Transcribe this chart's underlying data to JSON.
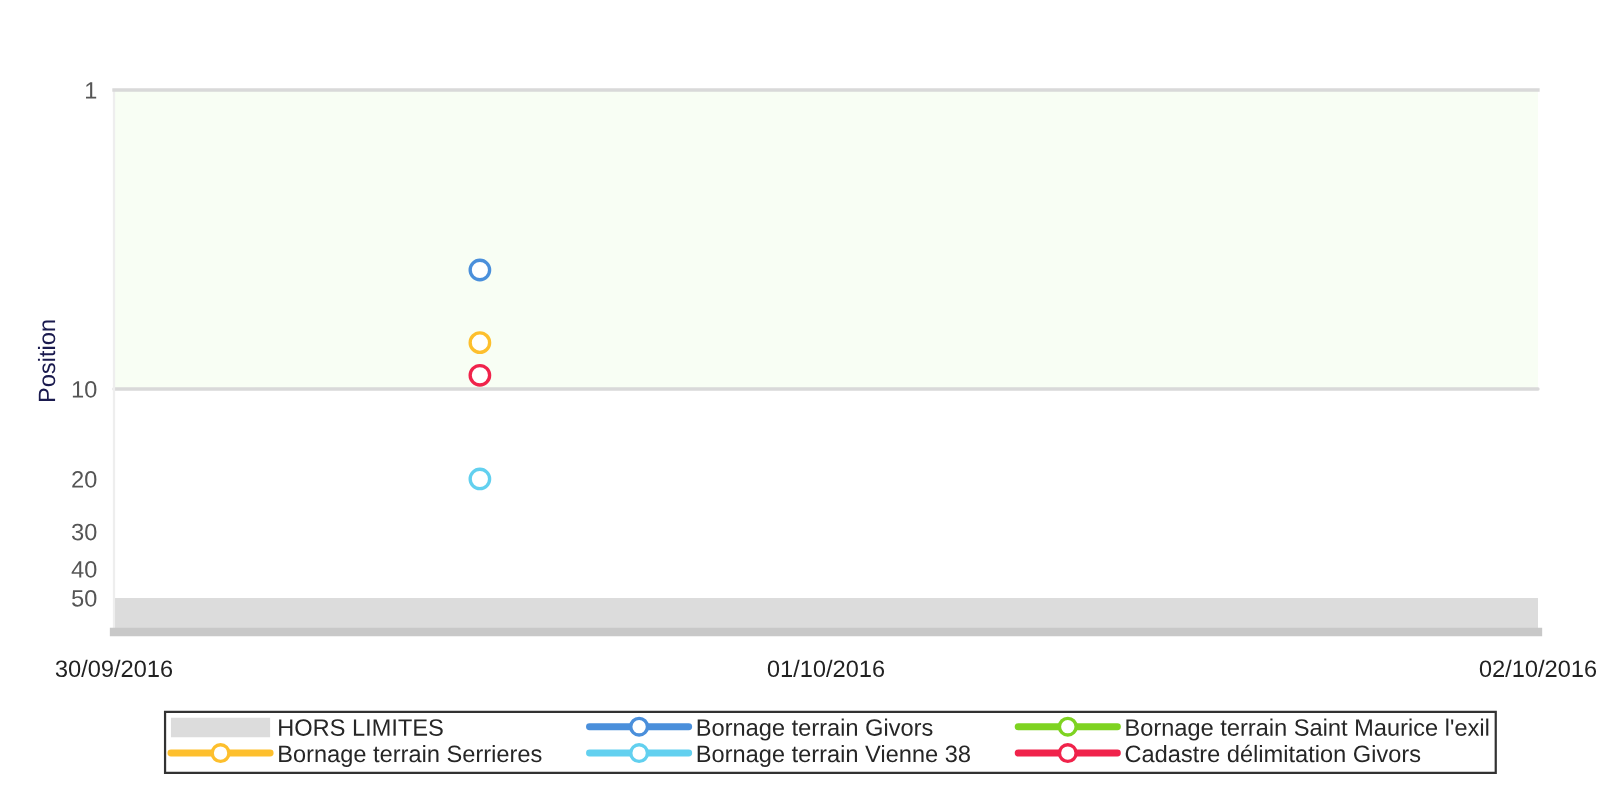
{
  "chart_data": {
    "type": "line",
    "ylabel": "Position",
    "x": [
      "2016-09-30T12:20"
    ],
    "series": [
      {
        "name": "Bornage terrain Givors",
        "color": "#4a8fdb",
        "values": [
          4
        ]
      },
      {
        "name": "Bornage terrain Saint Maurice l'exil",
        "color": "#7ed321",
        "values": [
          null
        ]
      },
      {
        "name": "Bornage terrain Serrieres",
        "color": "#fdbf2d",
        "values": [
          7
        ]
      },
      {
        "name": "Bornage terrain Vienne 38",
        "color": "#62d0ef",
        "values": [
          20
        ]
      },
      {
        "name": "Cadastre délimitation Givors",
        "color": "#f0234b",
        "values": [
          9
        ]
      }
    ],
    "log": "y",
    "ylim": [
      65,
      1
    ],
    "yticks": [
      1,
      10,
      20,
      30,
      40,
      50
    ],
    "xlim": [
      "2016-09-30",
      "2016-10-02"
    ],
    "xticks": [
      {
        "value": "2016-09-30",
        "label": "30/09/2016"
      },
      {
        "value": "2016-10-01",
        "label": "01/10/2016"
      },
      {
        "value": "2016-10-02",
        "label": "02/10/2016"
      }
    ],
    "bands": [
      {
        "axis": "y",
        "from": 50,
        "to": 65,
        "label": "HORS LIMITES",
        "color": "#dcdcdc"
      },
      {
        "axis": "y",
        "from": 1,
        "to": 10,
        "color": "#f8fef4"
      }
    ],
    "ref_lines": [
      {
        "axis": "y",
        "value": 10,
        "color": "#d9d9d9"
      }
    ],
    "marker": "circle",
    "line_style": "solid",
    "legend": "bottom"
  }
}
